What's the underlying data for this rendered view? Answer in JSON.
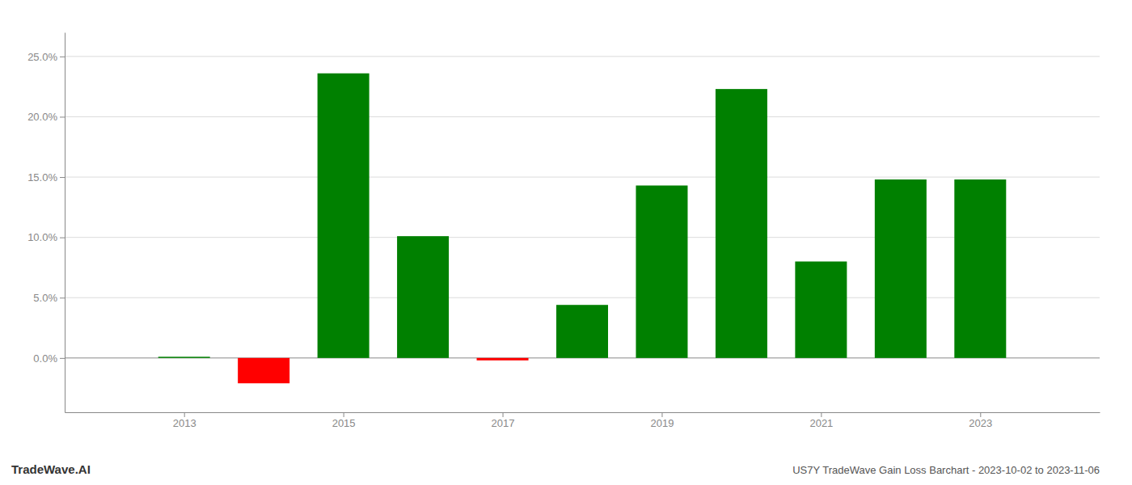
{
  "chart_data": {
    "type": "bar",
    "title": "US7Y TradeWave Gain Loss Barchart - 2023-10-02 to 2023-11-06",
    "annotations": [
      "TradeWave.AI"
    ],
    "x": [
      2013,
      2014,
      2015,
      2016,
      2017,
      2018,
      2019,
      2020,
      2021,
      2022,
      2023
    ],
    "values": [
      0.001,
      -0.021,
      0.236,
      0.101,
      -0.002,
      0.044,
      0.143,
      0.223,
      0.08,
      0.148,
      0.148
    ],
    "colors": [
      "#008000",
      "#ff0000",
      "#008000",
      "#008000",
      "#ff0000",
      "#008000",
      "#008000",
      "#008000",
      "#008000",
      "#008000",
      "#008000"
    ],
    "xlim": [
      2011.5,
      2024.5
    ],
    "xticks": [
      2013,
      2015,
      2017,
      2019,
      2021,
      2023
    ],
    "ylim": [
      -0.045,
      0.27
    ],
    "yticks": [
      {
        "value": 0.0,
        "label": "0.0%"
      },
      {
        "value": 0.05,
        "label": "5.0%"
      },
      {
        "value": 0.1,
        "label": "10.0%"
      },
      {
        "value": 0.15,
        "label": "15.0%"
      },
      {
        "value": 0.2,
        "label": "20.0%"
      },
      {
        "value": 0.25,
        "label": "25.0%"
      }
    ],
    "grid": true
  }
}
